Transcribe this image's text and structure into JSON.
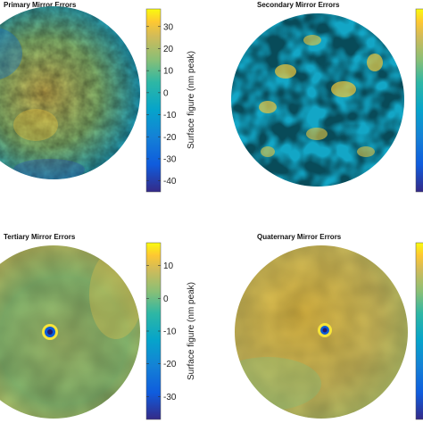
{
  "chart_data": [
    {
      "type": "heatmap",
      "title": "Primary Mirror Errors",
      "colorbar": {
        "label": "Surface figure (nm peak)",
        "range": [
          -45,
          38
        ],
        "ticks": [
          30,
          20,
          10,
          0,
          -10,
          -20,
          -30,
          -40
        ]
      },
      "pattern": "mottled, warmer centre",
      "colorscale": "parula"
    },
    {
      "type": "heatmap",
      "title": "Secondary Mirror Errors",
      "colorbar": {
        "label": "",
        "range": [
          -45,
          38
        ],
        "ticks": []
      },
      "pattern": "high-contrast blotches",
      "colorscale": "parula"
    },
    {
      "type": "heatmap",
      "title": "Tertiary Mirror Errors",
      "colorbar": {
        "label": "Surface figure (nm peak)",
        "range": [
          -37,
          17
        ],
        "ticks": [
          10,
          0,
          -10,
          -20,
          -30
        ]
      },
      "pattern": "smooth with central ring",
      "colorscale": "parula"
    },
    {
      "type": "heatmap",
      "title": "Quaternary Mirror Errors",
      "colorbar": {
        "label": "",
        "range": [
          -37,
          17
        ],
        "ticks": []
      },
      "pattern": "smooth warm with central ring",
      "colorscale": "parula"
    }
  ]
}
